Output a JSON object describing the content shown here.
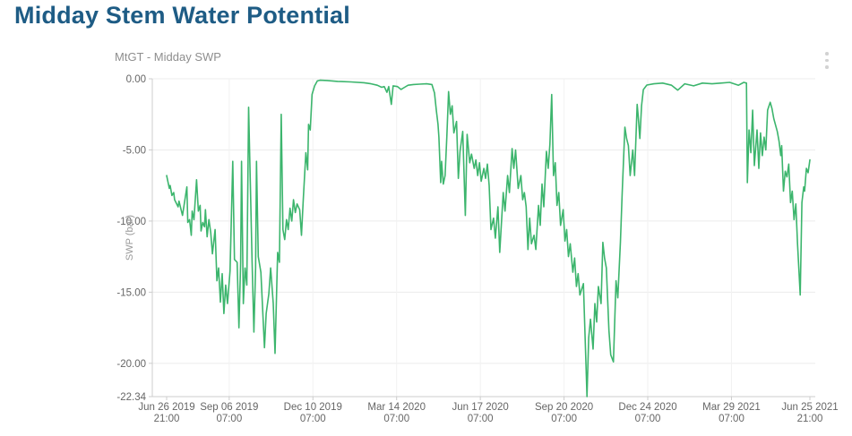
{
  "page": {
    "title": "Midday Stem Water Potential"
  },
  "chart": {
    "subtitle": "MtGT - Midday SWP",
    "menu_icon": "kebab-menu-icon",
    "colors": {
      "title": "#1e5c85",
      "subtitle_text": "#8e8e8e",
      "line": "#3cb56d",
      "axis_line": "#cccccc",
      "grid_h": "#ececec",
      "grid_v": "#f2f2f2",
      "tick_text": "#666666",
      "axis_title_text": "#999999"
    }
  },
  "chart_data": {
    "type": "line",
    "title": "MtGT - Midday SWP",
    "xlabel": "",
    "ylabel": "SWP (bar)",
    "legend": "none",
    "grid": true,
    "x_unit": "days since Jun 26 2019 21:00",
    "x_range": [
      0,
      730
    ],
    "ylim": [
      -22.34,
      0
    ],
    "y_ticks": [
      {
        "v": 0,
        "label": "0.00"
      },
      {
        "v": -5,
        "label": "-5.00"
      },
      {
        "v": -10,
        "label": "-10.00"
      },
      {
        "v": -15,
        "label": "-15.00"
      },
      {
        "v": -20,
        "label": "-20.00"
      },
      {
        "v": -22.34,
        "label": "-22.34"
      }
    ],
    "x_ticks": [
      {
        "t": 0,
        "date": "Jun 26 2019",
        "time": "21:00"
      },
      {
        "t": 71,
        "date": "Sep 06 2019",
        "time": "07:00"
      },
      {
        "t": 166,
        "date": "Dec 10 2019",
        "time": "07:00"
      },
      {
        "t": 261,
        "date": "Mar 14 2020",
        "time": "07:00"
      },
      {
        "t": 356,
        "date": "Jun 17 2020",
        "time": "07:00"
      },
      {
        "t": 451,
        "date": "Sep 20 2020",
        "time": "07:00"
      },
      {
        "t": 546,
        "date": "Dec 24 2020",
        "time": "07:00"
      },
      {
        "t": 641,
        "date": "Mar 29 2021",
        "time": "07:00"
      },
      {
        "t": 730,
        "date": "Jun 25 2021",
        "time": "21:00"
      }
    ],
    "series": [
      {
        "name": "MtGT - Midday SWP",
        "color": "#3cb56d",
        "points": [
          [
            0,
            -6.8
          ],
          [
            3,
            -7.7
          ],
          [
            4,
            -7.5
          ],
          [
            6,
            -8.2
          ],
          [
            8,
            -8.0
          ],
          [
            9,
            -8.5
          ],
          [
            13,
            -9.0
          ],
          [
            14,
            -8.6
          ],
          [
            18,
            -9.6
          ],
          [
            19,
            -9.2
          ],
          [
            23,
            -7.6
          ],
          [
            24,
            -10.1
          ],
          [
            26,
            -9.9
          ],
          [
            28,
            -11.0
          ],
          [
            29,
            -9.3
          ],
          [
            31,
            -9.9
          ],
          [
            34,
            -7.1
          ],
          [
            36,
            -9.3
          ],
          [
            38,
            -8.9
          ],
          [
            39,
            -10.7
          ],
          [
            41,
            -10.1
          ],
          [
            43,
            -10.4
          ],
          [
            44,
            -9.2
          ],
          [
            46,
            -11.1
          ],
          [
            48,
            -9.9
          ],
          [
            50,
            -10.8
          ],
          [
            52,
            -12.3
          ],
          [
            55,
            -10.6
          ],
          [
            57,
            -14.2
          ],
          [
            59,
            -13.3
          ],
          [
            61,
            -15.7
          ],
          [
            63,
            -13.7
          ],
          [
            65,
            -16.5
          ],
          [
            67,
            -14.5
          ],
          [
            69,
            -15.8
          ],
          [
            72,
            -13.5
          ],
          [
            75,
            -5.8
          ],
          [
            77,
            -12.7
          ],
          [
            80,
            -12.9
          ],
          [
            82,
            -17.5
          ],
          [
            84,
            -12.9
          ],
          [
            85,
            -5.8
          ],
          [
            87,
            -15.8
          ],
          [
            89,
            -13.3
          ],
          [
            91,
            -14.5
          ],
          [
            93,
            -2.0
          ],
          [
            95,
            -7.3
          ],
          [
            97,
            -12.9
          ],
          [
            99,
            -17.8
          ],
          [
            101,
            -13.3
          ],
          [
            102,
            -5.8
          ],
          [
            104,
            -12.5
          ],
          [
            107,
            -13.6
          ],
          [
            111,
            -18.9
          ],
          [
            113,
            -16.5
          ],
          [
            116,
            -15.1
          ],
          [
            118,
            -13.3
          ],
          [
            121,
            -15.8
          ],
          [
            123,
            -19.3
          ],
          [
            126,
            -12.2
          ],
          [
            128,
            -12.9
          ],
          [
            130,
            -2.5
          ],
          [
            132,
            -10.6
          ],
          [
            134,
            -11.3
          ],
          [
            136,
            -9.9
          ],
          [
            138,
            -10.6
          ],
          [
            140,
            -9.1
          ],
          [
            142,
            -10.0
          ],
          [
            144,
            -8.5
          ],
          [
            146,
            -9.4
          ],
          [
            148,
            -8.8
          ],
          [
            151,
            -9.2
          ],
          [
            153,
            -11.0
          ],
          [
            155,
            -8.5
          ],
          [
            158,
            -5.2
          ],
          [
            160,
            -6.4
          ],
          [
            161,
            -3.2
          ],
          [
            163,
            -3.6
          ],
          [
            165,
            -1.1
          ],
          [
            168,
            -0.5
          ],
          [
            171,
            -0.15
          ],
          [
            174,
            -0.1
          ],
          [
            182,
            -0.12
          ],
          [
            194,
            -0.18
          ],
          [
            209,
            -0.22
          ],
          [
            224,
            -0.28
          ],
          [
            232,
            -0.35
          ],
          [
            239,
            -0.45
          ],
          [
            244,
            -0.6
          ],
          [
            247,
            -0.55
          ],
          [
            250,
            -0.95
          ],
          [
            252,
            -0.55
          ],
          [
            255,
            -1.8
          ],
          [
            257,
            -0.5
          ],
          [
            262,
            -0.55
          ],
          [
            266,
            -0.75
          ],
          [
            270,
            -0.6
          ],
          [
            274,
            -0.45
          ],
          [
            280,
            -0.4
          ],
          [
            287,
            -0.38
          ],
          [
            295,
            -0.35
          ],
          [
            301,
            -0.4
          ],
          [
            304,
            -1.0
          ],
          [
            306,
            -2.2
          ],
          [
            308,
            -3.2
          ],
          [
            309,
            -4.1
          ],
          [
            311,
            -7.3
          ],
          [
            312,
            -5.8
          ],
          [
            314,
            -7.4
          ],
          [
            316,
            -6.8
          ],
          [
            318,
            -4.0
          ],
          [
            320,
            -0.9
          ],
          [
            322,
            -2.5
          ],
          [
            324,
            -1.9
          ],
          [
            326,
            -3.8
          ],
          [
            329,
            -3.0
          ],
          [
            331,
            -7.0
          ],
          [
            333,
            -5.1
          ],
          [
            336,
            -3.7
          ],
          [
            339,
            -9.6
          ],
          [
            341,
            -3.9
          ],
          [
            344,
            -5.9
          ],
          [
            346,
            -5.3
          ],
          [
            349,
            -6.3
          ],
          [
            351,
            -5.7
          ],
          [
            353,
            -6.8
          ],
          [
            355,
            -5.9
          ],
          [
            357,
            -7.2
          ],
          [
            360,
            -6.3
          ],
          [
            362,
            -7.0
          ],
          [
            364,
            -6.0
          ],
          [
            366,
            -7.5
          ],
          [
            368,
            -10.6
          ],
          [
            371,
            -9.8
          ],
          [
            373,
            -11.2
          ],
          [
            376,
            -9.0
          ],
          [
            378,
            -12.2
          ],
          [
            382,
            -8.0
          ],
          [
            384,
            -9.3
          ],
          [
            387,
            -6.8
          ],
          [
            389,
            -8.0
          ],
          [
            392,
            -4.9
          ],
          [
            394,
            -6.3
          ],
          [
            396,
            -5.0
          ],
          [
            399,
            -7.7
          ],
          [
            402,
            -6.8
          ],
          [
            404,
            -8.5
          ],
          [
            406,
            -8.0
          ],
          [
            408,
            -9.0
          ],
          [
            410,
            -12.0
          ],
          [
            412,
            -9.8
          ],
          [
            414,
            -11.6
          ],
          [
            417,
            -11.0
          ],
          [
            419,
            -12.0
          ],
          [
            422,
            -8.9
          ],
          [
            424,
            -10.3
          ],
          [
            426,
            -7.4
          ],
          [
            428,
            -9.0
          ],
          [
            431,
            -5.1
          ],
          [
            433,
            -6.3
          ],
          [
            435,
            -4.6
          ],
          [
            437,
            -1.1
          ],
          [
            439,
            -6.8
          ],
          [
            441,
            -5.9
          ],
          [
            443,
            -8.9
          ],
          [
            445,
            -8.0
          ],
          [
            447,
            -10.3
          ],
          [
            450,
            -9.2
          ],
          [
            452,
            -11.4
          ],
          [
            454,
            -10.6
          ],
          [
            456,
            -12.5
          ],
          [
            458,
            -11.6
          ],
          [
            461,
            -13.6
          ],
          [
            463,
            -12.6
          ],
          [
            465,
            -14.6
          ],
          [
            467,
            -13.7
          ],
          [
            469,
            -15.2
          ],
          [
            473,
            -14.4
          ],
          [
            477,
            -22.34
          ],
          [
            479,
            -18.2
          ],
          [
            481,
            -16.9
          ],
          [
            484,
            -19.0
          ],
          [
            486,
            -15.8
          ],
          [
            488,
            -17.1
          ],
          [
            490,
            -14.6
          ],
          [
            493,
            -15.8
          ],
          [
            495,
            -11.5
          ],
          [
            497,
            -12.6
          ],
          [
            499,
            -13.3
          ],
          [
            502,
            -17.7
          ],
          [
            504,
            -19.4
          ],
          [
            507,
            -19.9
          ],
          [
            510,
            -14.2
          ],
          [
            512,
            -15.4
          ],
          [
            515,
            -11.5
          ],
          [
            517,
            -8.0
          ],
          [
            520,
            -3.4
          ],
          [
            522,
            -4.2
          ],
          [
            524,
            -4.7
          ],
          [
            526,
            -6.8
          ],
          [
            529,
            -5.0
          ],
          [
            531,
            -6.8
          ],
          [
            534,
            -1.8
          ],
          [
            535,
            -2.5
          ],
          [
            537,
            -4.2
          ],
          [
            539,
            -1.9
          ],
          [
            541,
            -0.76
          ],
          [
            545,
            -0.44
          ],
          [
            553,
            -0.35
          ],
          [
            563,
            -0.3
          ],
          [
            573,
            -0.45
          ],
          [
            580,
            -0.8
          ],
          [
            588,
            -0.35
          ],
          [
            598,
            -0.5
          ],
          [
            608,
            -0.3
          ],
          [
            619,
            -0.35
          ],
          [
            629,
            -0.3
          ],
          [
            639,
            -0.25
          ],
          [
            649,
            -0.45
          ],
          [
            655,
            -0.25
          ],
          [
            658,
            -0.3
          ],
          [
            659,
            -7.3
          ],
          [
            661,
            -3.6
          ],
          [
            663,
            -5.2
          ],
          [
            665,
            -2.2
          ],
          [
            667,
            -6.1
          ],
          [
            670,
            -3.6
          ],
          [
            672,
            -6.3
          ],
          [
            674,
            -3.8
          ],
          [
            676,
            -5.4
          ],
          [
            678,
            -4.1
          ],
          [
            680,
            -5.0
          ],
          [
            682,
            -2.2
          ],
          [
            685,
            -1.65
          ],
          [
            687,
            -2.1
          ],
          [
            689,
            -2.8
          ],
          [
            693,
            -3.7
          ],
          [
            695,
            -4.4
          ],
          [
            697,
            -5.4
          ],
          [
            698,
            -4.7
          ],
          [
            700,
            -7.9
          ],
          [
            702,
            -6.5
          ],
          [
            704,
            -6.9
          ],
          [
            706,
            -6.0
          ],
          [
            708,
            -8.7
          ],
          [
            710,
            -7.9
          ],
          [
            712,
            -9.9
          ],
          [
            714,
            -8.8
          ],
          [
            716,
            -11.6
          ],
          [
            719,
            -15.2
          ],
          [
            721,
            -8.7
          ],
          [
            723,
            -7.6
          ],
          [
            724,
            -7.9
          ],
          [
            726,
            -6.3
          ],
          [
            728,
            -6.6
          ],
          [
            730,
            -5.7
          ]
        ]
      }
    ]
  }
}
